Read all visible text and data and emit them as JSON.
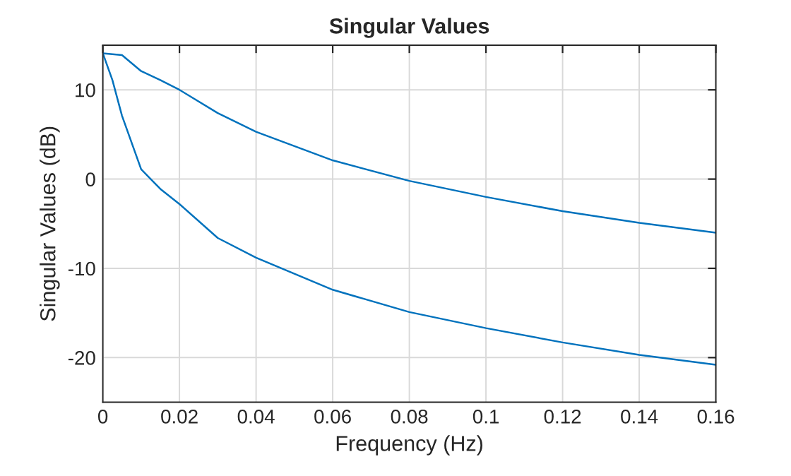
{
  "chart_data": {
    "type": "line",
    "title": "Singular Values",
    "xlabel": "Frequency (Hz)",
    "ylabel": "Singular Values (dB)",
    "x": [
      0,
      0.0025,
      0.005,
      0.01,
      0.015,
      0.02,
      0.03,
      0.04,
      0.06,
      0.08,
      0.1,
      0.12,
      0.14,
      0.16
    ],
    "series": [
      {
        "color": "#0072bd",
        "values": [
          14.1,
          14.0,
          13.9,
          12.1,
          11.1,
          10.0,
          7.4,
          5.3,
          2.1,
          -0.2,
          -2.0,
          -3.6,
          -4.9,
          -6.0
        ]
      },
      {
        "color": "#0072bd",
        "values": [
          14.1,
          11.1,
          7.1,
          1.1,
          -1.1,
          -2.8,
          -6.6,
          -8.8,
          -12.4,
          -14.9,
          -16.7,
          -18.3,
          -19.7,
          -20.8
        ]
      }
    ],
    "xlim": [
      0,
      0.16
    ],
    "xticks": [
      0,
      0.02,
      0.04,
      0.06,
      0.08,
      0.1,
      0.12,
      0.14,
      0.16
    ],
    "ylim": [
      -25,
      15
    ],
    "yticks": [
      -20,
      -10,
      0,
      10
    ],
    "grid": true,
    "legend": false
  }
}
